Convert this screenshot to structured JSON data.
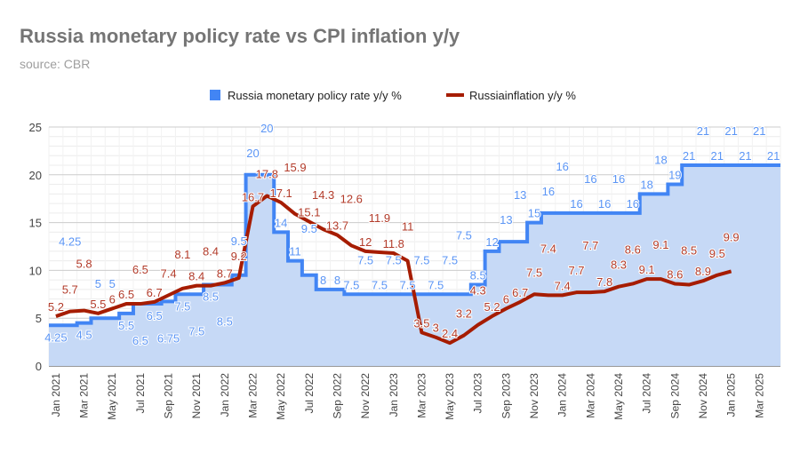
{
  "chart_data": {
    "type": "stepped-area + line",
    "title": "Russia monetary policy rate vs CPI inflation y/y",
    "subtitle": "source: CBR",
    "xlabel": "",
    "ylabel": "",
    "ylim": [
      0,
      25
    ],
    "yticks": [
      0,
      5,
      10,
      15,
      20,
      25
    ],
    "grid": true,
    "legend_position": "top",
    "categories": [
      "Jan 2021",
      "Feb 2021",
      "Mar 2021",
      "Apr 2021",
      "May 2021",
      "Jun 2021",
      "Jul 2021",
      "Aug 2021",
      "Sep 2021",
      "Oct 2021",
      "Nov 2021",
      "Dec 2021",
      "Jan 2022",
      "Feb 2022",
      "Mar 2022",
      "Apr 2022",
      "May 2022",
      "Jun 2022",
      "Jul 2022",
      "Aug 2022",
      "Sep 2022",
      "Oct 2022",
      "Nov 2022",
      "Dec 2022",
      "Jan 2023",
      "Feb 2023",
      "Mar 2023",
      "Apr 2023",
      "May 2023",
      "Jun 2023",
      "Jul 2023",
      "Aug 2023",
      "Sep 2023",
      "Oct 2023",
      "Nov 2023",
      "Dec 2023",
      "Jan 2024",
      "Feb 2024",
      "Mar 2024",
      "Apr 2024",
      "May 2024",
      "Jun 2024",
      "Jul 2024",
      "Aug 2024",
      "Sep 2024",
      "Oct 2024",
      "Nov 2024",
      "Dec 2024",
      "Jan 2025",
      "Feb 2025",
      "Mar 2025",
      "Apr 2025"
    ],
    "series": [
      {
        "name": "Russia monetary policy rate y/y %",
        "type": "stepped-area",
        "color": "#4285f4",
        "values": [
          4.25,
          4.25,
          4.5,
          5,
          5,
          5.5,
          6.5,
          6.5,
          6.75,
          7.5,
          7.5,
          8.5,
          8.5,
          9.5,
          20,
          20,
          14,
          11,
          9.5,
          8,
          8,
          7.5,
          7.5,
          7.5,
          7.5,
          7.5,
          7.5,
          7.5,
          7.5,
          7.5,
          8.5,
          12,
          13,
          13,
          15,
          16,
          16,
          16,
          16,
          16,
          16,
          16,
          18,
          18,
          19,
          21,
          21,
          21,
          21,
          21,
          21,
          21
        ]
      },
      {
        "name": "Russiainflation y/y %",
        "type": "line",
        "color": "#a61c00",
        "values": [
          5.2,
          5.7,
          5.8,
          5.5,
          6.0,
          6.5,
          6.5,
          6.7,
          7.4,
          8.1,
          8.4,
          8.4,
          8.7,
          9.2,
          16.7,
          17.8,
          17.1,
          15.9,
          15.1,
          14.3,
          13.7,
          12.6,
          12.0,
          11.9,
          11.8,
          11,
          3.5,
          3.0,
          2.4,
          3.2,
          4.3,
          5.2,
          6.0,
          6.7,
          7.5,
          7.4,
          7.4,
          7.7,
          7.7,
          7.8,
          8.3,
          8.6,
          9.1,
          9.1,
          8.6,
          8.5,
          8.9,
          9.5,
          9.9,
          null,
          null,
          null
        ]
      }
    ]
  }
}
